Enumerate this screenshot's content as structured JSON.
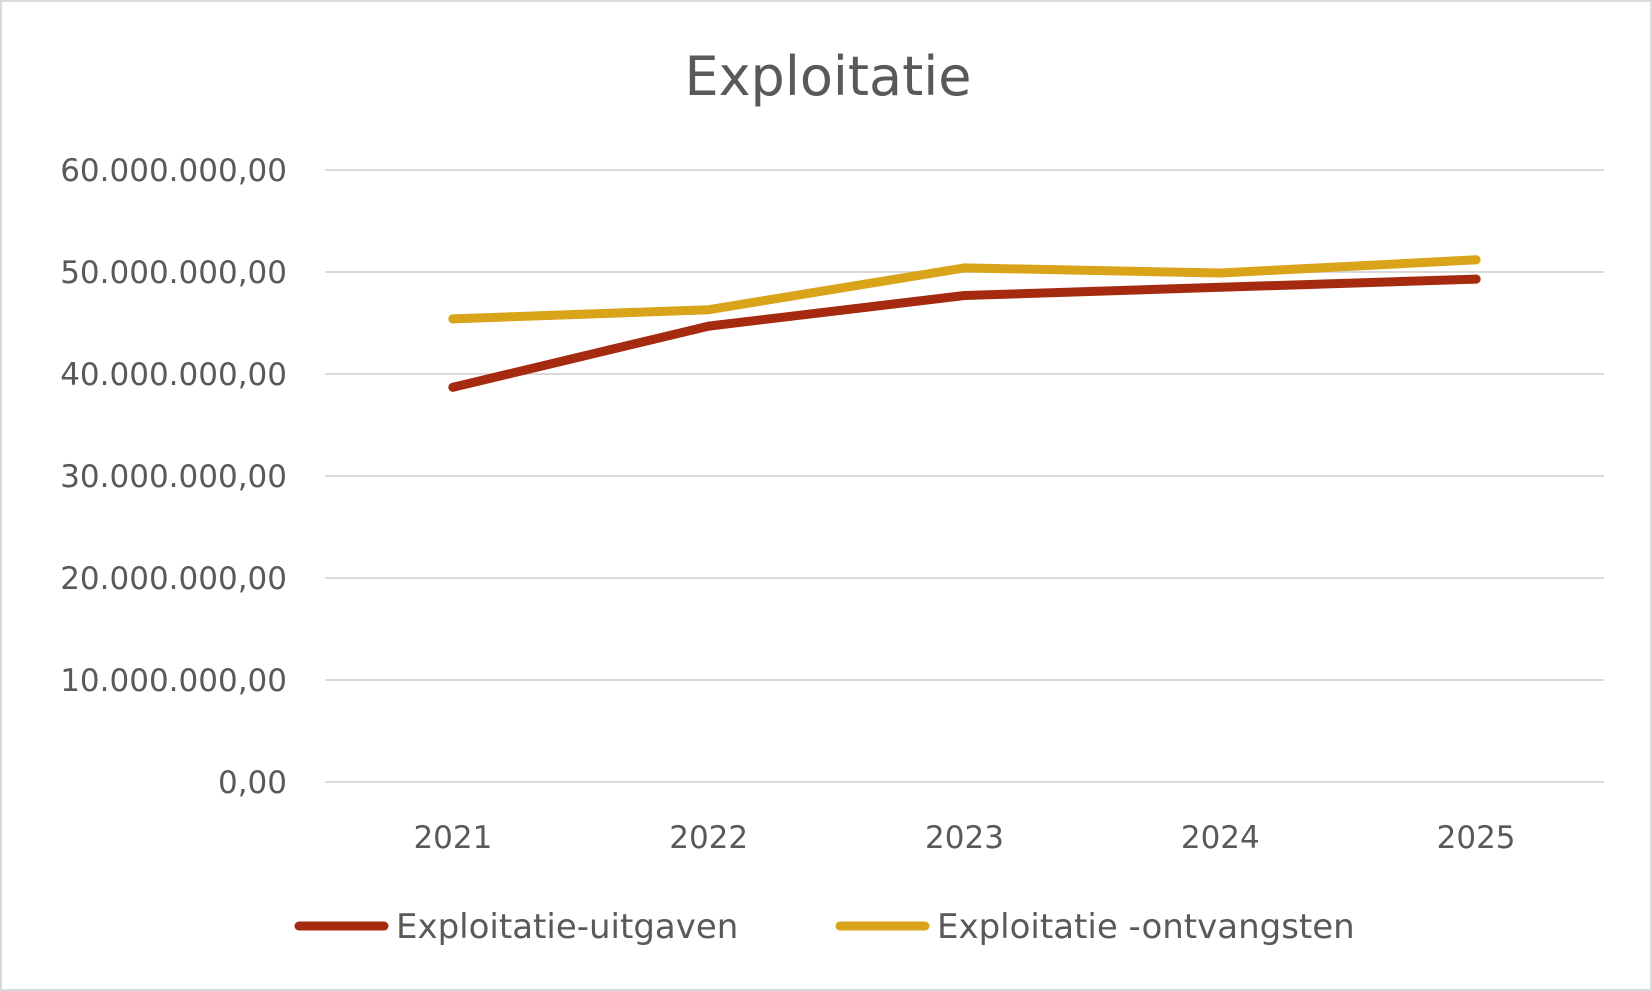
{
  "chart_data": {
    "type": "line",
    "title": "Exploitatie",
    "categories": [
      "2021",
      "2022",
      "2023",
      "2024",
      "2025"
    ],
    "y_tick_labels": [
      "0,00",
      "10.000.000,00",
      "20.000.000,00",
      "30.000.000,00",
      "40.000.000,00",
      "50.000.000,00",
      "60.000.000,00"
    ],
    "ylim": [
      0,
      60000000
    ],
    "y_tick_step": 10000000,
    "grid": true,
    "legend_position": "bottom",
    "series": [
      {
        "name": "Exploitatie-uitgaven",
        "color": "#a52a0f",
        "values": [
          38700000,
          44700000,
          47700000,
          48500000,
          49300000
        ]
      },
      {
        "name": "Exploitatie -ontvangsten",
        "color": "#d9a31a",
        "values": [
          45400000,
          46300000,
          50400000,
          49900000,
          51200000
        ]
      }
    ]
  }
}
